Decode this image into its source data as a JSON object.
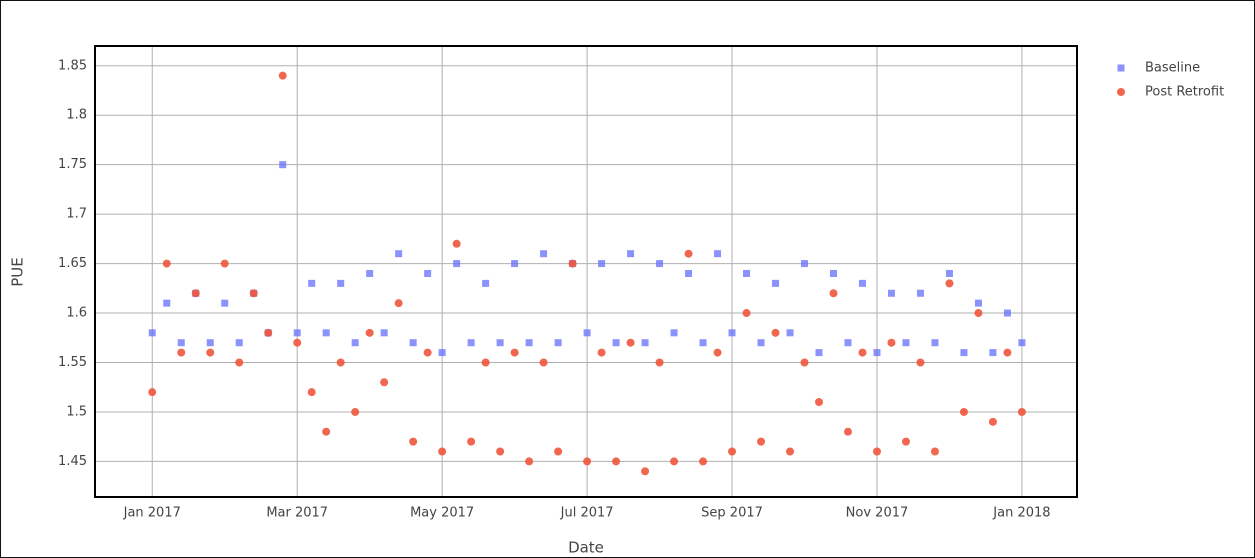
{
  "chart_data": {
    "type": "scatter",
    "x_label": "Date",
    "y_label": "PUE",
    "x": [
      0,
      0.2,
      0.4,
      0.6,
      0.8,
      1,
      1.2,
      1.4,
      1.6,
      1.8,
      2,
      2.2,
      2.4,
      2.6,
      2.8,
      3,
      3.2,
      3.4,
      3.6,
      3.8,
      4,
      4.2,
      4.4,
      4.6,
      4.8,
      5,
      5.2,
      5.4,
      5.6,
      5.8,
      6,
      6.2,
      6.4,
      6.6,
      6.8,
      7,
      7.2,
      7.4,
      7.6,
      7.8,
      8,
      8.2,
      8.4,
      8.6,
      8.8,
      9,
      9.2,
      9.4,
      9.6,
      9.8,
      10,
      10.2,
      10.4,
      10.6,
      10.8,
      11,
      11.2,
      11.4,
      11.6,
      11.8,
      12
    ],
    "series": [
      {
        "name": "Baseline",
        "color": "#636efa",
        "symbol": "square",
        "values": [
          1.58,
          1.61,
          1.57,
          1.62,
          1.57,
          1.61,
          1.57,
          1.62,
          1.58,
          1.75,
          1.58,
          1.63,
          1.58,
          1.63,
          1.57,
          1.64,
          1.58,
          1.66,
          1.57,
          1.64,
          1.56,
          1.65,
          1.57,
          1.63,
          1.57,
          1.65,
          1.57,
          1.66,
          1.57,
          1.65,
          1.58,
          1.65,
          1.57,
          1.66,
          1.57,
          1.65,
          1.58,
          1.64,
          1.57,
          1.66,
          1.58,
          1.64,
          1.57,
          1.63,
          1.58,
          1.65,
          1.56,
          1.64,
          1.57,
          1.63,
          1.56,
          1.62,
          1.57,
          1.62,
          1.57,
          1.64,
          1.56,
          1.61,
          1.56,
          1.6,
          1.57
        ]
      },
      {
        "name": "Post Retrofit",
        "color": "#ef553b",
        "symbol": "circle",
        "values": [
          1.52,
          1.65,
          1.56,
          1.62,
          1.56,
          1.65,
          1.55,
          1.62,
          1.58,
          1.84,
          1.57,
          1.52,
          1.48,
          1.55,
          1.5,
          1.58,
          1.53,
          1.61,
          1.47,
          1.56,
          1.46,
          1.67,
          1.47,
          1.55,
          1.46,
          1.56,
          1.45,
          1.55,
          1.46,
          1.65,
          1.45,
          1.56,
          1.45,
          1.57,
          1.44,
          1.55,
          1.45,
          1.66,
          1.45,
          1.56,
          1.46,
          1.6,
          1.47,
          1.58,
          1.46,
          1.55,
          1.51,
          1.62,
          1.48,
          1.56,
          1.46,
          1.57,
          1.47,
          1.55,
          1.46,
          1.63,
          1.5,
          1.6,
          1.49,
          1.56,
          1.5
        ]
      }
    ],
    "xlim": [
      -0.79,
      12.76
    ],
    "xticks": [
      {
        "value": 0,
        "label": "Jan 2017"
      },
      {
        "value": 2,
        "label": "Mar 2017"
      },
      {
        "value": 4,
        "label": "May 2017"
      },
      {
        "value": 6,
        "label": "Jul 2017"
      },
      {
        "value": 8,
        "label": "Sep 2017"
      },
      {
        "value": 10,
        "label": "Nov 2017"
      },
      {
        "value": 12,
        "label": "Jan 2018"
      }
    ],
    "ylim": [
      1.414,
      1.87
    ],
    "yticks": [
      1.45,
      1.5,
      1.55,
      1.6,
      1.65,
      1.7,
      1.75,
      1.8,
      1.85
    ],
    "grid": true,
    "legend": "outside-right"
  }
}
